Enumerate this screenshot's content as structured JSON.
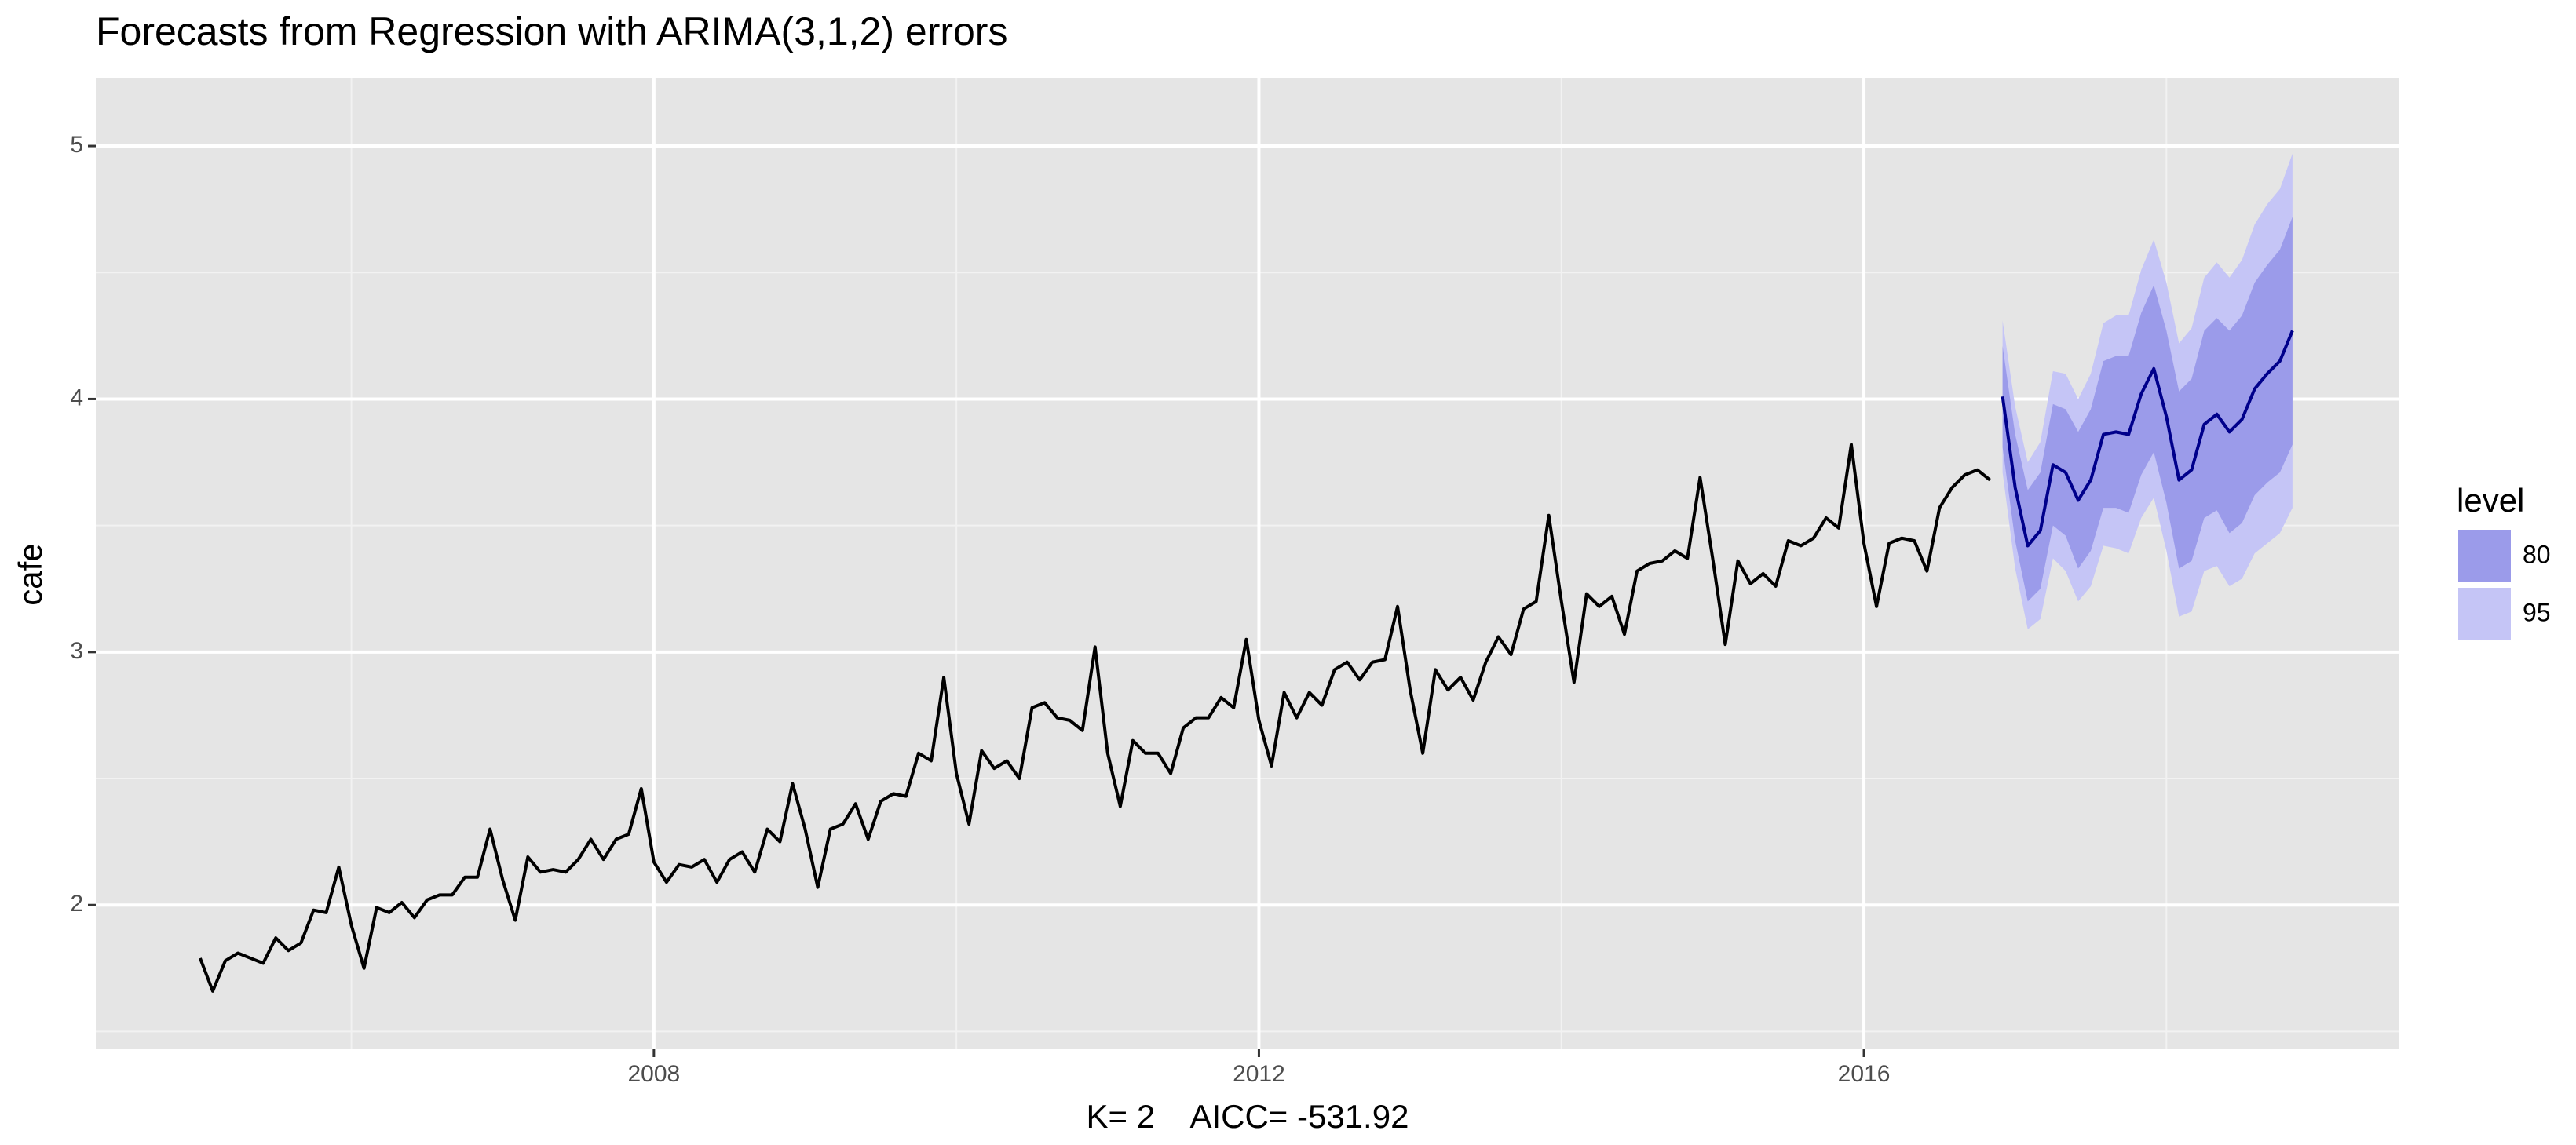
{
  "chart_data": {
    "type": "line",
    "title": "Forecasts from Regression with ARIMA(3,1,2) errors",
    "x_label": "K= 2    AICC= -531.92",
    "y_label": "cafe",
    "legend_title": "level",
    "xlim": [
      2004.31,
      2019.54
    ],
    "ylim": [
      1.43,
      5.27
    ],
    "xticks": [
      2008,
      2012,
      2016
    ],
    "yticks": [
      2,
      3,
      4,
      5
    ],
    "x_minor_ticks": [
      2006,
      2010,
      2014,
      2018
    ],
    "y_minor_ticks": [
      1.5,
      2.5,
      3.5,
      4.5
    ],
    "grid": true,
    "frequency": 12,
    "series": [
      {
        "color": "#000000",
        "start": [
          2005,
          1
        ],
        "values": [
          1.79,
          1.66,
          1.78,
          1.81,
          1.79,
          1.77,
          1.87,
          1.82,
          1.85,
          1.98,
          1.97,
          2.15,
          1.92,
          1.75,
          1.99,
          1.97,
          2.01,
          1.95,
          2.02,
          2.04,
          2.04,
          2.11,
          2.11,
          2.3,
          2.1,
          1.94,
          2.19,
          2.13,
          2.14,
          2.13,
          2.18,
          2.26,
          2.18,
          2.26,
          2.28,
          2.46,
          2.17,
          2.09,
          2.16,
          2.15,
          2.18,
          2.09,
          2.18,
          2.21,
          2.13,
          2.3,
          2.25,
          2.48,
          2.3,
          2.07,
          2.3,
          2.32,
          2.4,
          2.26,
          2.41,
          2.44,
          2.43,
          2.6,
          2.57,
          2.9,
          2.52,
          2.32,
          2.61,
          2.54,
          2.57,
          2.5,
          2.78,
          2.8,
          2.74,
          2.73,
          2.69,
          3.02,
          2.6,
          2.39,
          2.65,
          2.6,
          2.6,
          2.52,
          2.7,
          2.74,
          2.74,
          2.82,
          2.78,
          3.05,
          2.73,
          2.55,
          2.84,
          2.74,
          2.84,
          2.79,
          2.93,
          2.96,
          2.89,
          2.96,
          2.97,
          3.18,
          2.85,
          2.6,
          2.93,
          2.85,
          2.9,
          2.81,
          2.96,
          3.06,
          2.99,
          3.17,
          3.2,
          3.54,
          3.2,
          2.88,
          3.23,
          3.18,
          3.22,
          3.07,
          3.32,
          3.35,
          3.36,
          3.4,
          3.37,
          3.69,
          3.37,
          3.03,
          3.36,
          3.27,
          3.31,
          3.26,
          3.44,
          3.42,
          3.45,
          3.53,
          3.49,
          3.82,
          3.43,
          3.18,
          3.43,
          3.45,
          3.44,
          3.32,
          3.57,
          3.65,
          3.7,
          3.72,
          3.68
        ]
      },
      {
        "color": "#00008b",
        "start": [
          2016,
          12
        ],
        "values": [
          4.01,
          3.65,
          3.42,
          3.48,
          3.74,
          3.71,
          3.6,
          3.68,
          3.86,
          3.87,
          3.86,
          4.02,
          4.12,
          3.93,
          3.68,
          3.72,
          3.9,
          3.94,
          3.87,
          3.92,
          4.04,
          4.1,
          4.15,
          4.27
        ]
      }
    ],
    "bands": [
      {
        "name": "80",
        "color": "#9b9bea",
        "start": [
          2016,
          12
        ],
        "lower": [
          3.81,
          3.44,
          3.2,
          3.25,
          3.5,
          3.46,
          3.33,
          3.4,
          3.57,
          3.57,
          3.55,
          3.7,
          3.79,
          3.59,
          3.33,
          3.36,
          3.53,
          3.56,
          3.47,
          3.51,
          3.62,
          3.67,
          3.71,
          3.82
        ],
        "upper": [
          4.21,
          3.86,
          3.64,
          3.71,
          3.98,
          3.96,
          3.87,
          3.96,
          4.15,
          4.17,
          4.17,
          4.34,
          4.45,
          4.27,
          4.03,
          4.08,
          4.27,
          4.32,
          4.27,
          4.33,
          4.46,
          4.53,
          4.59,
          4.72
        ]
      },
      {
        "name": "95",
        "color": "#c5c5f6",
        "start": [
          2016,
          12
        ],
        "lower": [
          3.71,
          3.33,
          3.09,
          3.13,
          3.37,
          3.32,
          3.2,
          3.26,
          3.42,
          3.41,
          3.39,
          3.53,
          3.61,
          3.4,
          3.14,
          3.16,
          3.32,
          3.34,
          3.26,
          3.29,
          3.39,
          3.43,
          3.47,
          3.57
        ],
        "upper": [
          4.31,
          3.97,
          3.75,
          3.83,
          4.11,
          4.1,
          4.0,
          4.1,
          4.3,
          4.33,
          4.33,
          4.51,
          4.63,
          4.46,
          4.22,
          4.28,
          4.48,
          4.54,
          4.48,
          4.55,
          4.69,
          4.77,
          4.83,
          4.97
        ]
      }
    ]
  }
}
